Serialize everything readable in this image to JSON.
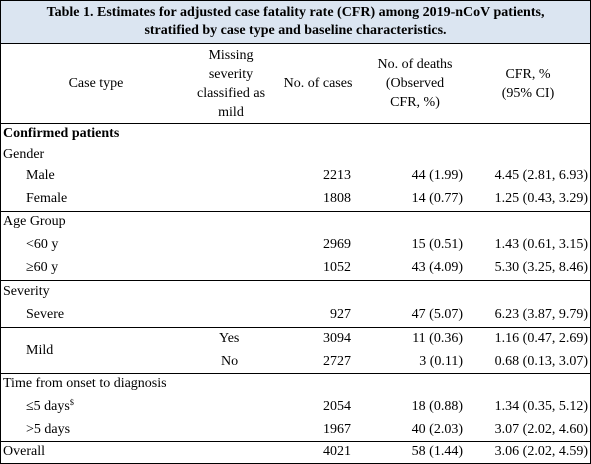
{
  "caption": {
    "line1": "Table 1. Estimates for adjusted case fatality rate (CFR) among 2019-nCoV patients,",
    "line2": "stratified by case type and baseline characteristics."
  },
  "headers": {
    "case_type": "Case type",
    "missing": [
      "Missing",
      "severity",
      "classified as",
      "mild"
    ],
    "cases": "No. of cases",
    "deaths": [
      "No. of deaths",
      "(Observed",
      "CFR, %)"
    ],
    "cfr": [
      "CFR, %",
      "(95% CI)"
    ]
  },
  "rows": [
    {
      "label": "Confirmed patients",
      "kind": "section"
    },
    {
      "label": "Gender",
      "kind": "group"
    },
    {
      "label": "Male",
      "kind": "item",
      "cases": "2213",
      "deaths": "44 (1.99)",
      "cfr": "4.45 (2.81, 6.93)"
    },
    {
      "label": "Female",
      "kind": "item",
      "cases": "1808",
      "deaths": "14 (0.77)",
      "cfr": "1.25 (0.43, 3.29)"
    },
    {
      "label": "Age Group",
      "kind": "group"
    },
    {
      "label": "<60 y",
      "kind": "item",
      "cases": "2969",
      "deaths": "15 (0.51)",
      "cfr": "1.43 (0.61, 3.15)"
    },
    {
      "label": "≥60 y",
      "kind": "item",
      "cases": "1052",
      "deaths": "43 (4.09)",
      "cfr": "5.30 (3.25, 8.46)"
    },
    {
      "label": "Severity",
      "kind": "group"
    },
    {
      "label": "Severe",
      "kind": "item",
      "cases": "927",
      "deaths": "47 (5.07)",
      "cfr": "6.23 (3.87, 9.79)"
    },
    {
      "label": "Mild",
      "kind": "item",
      "missing": "Yes",
      "cases": "3094",
      "deaths": "11 (0.36)",
      "cfr": "1.16 (0.47, 2.69)"
    },
    {
      "label": "",
      "kind": "item",
      "missing": "No",
      "cases": "2727",
      "deaths": "3 (0.11)",
      "cfr": "0.68 (0.13, 3.07)"
    },
    {
      "label": "Time from onset to diagnosis",
      "kind": "group"
    },
    {
      "label": "≤5 days",
      "footnote": "$",
      "kind": "item",
      "cases": "2054",
      "deaths": "18 (0.88)",
      "cfr": "1.34 (0.35, 5.12)"
    },
    {
      "label": ">5 days",
      "kind": "item",
      "cases": "1967",
      "deaths": "40 (2.03)",
      "cfr": "3.07 (2.02, 4.60)"
    },
    {
      "label": "Overall",
      "kind": "group",
      "cases": "4021",
      "deaths": "58 (1.44)",
      "cfr": "3.06 (2.02, 4.59)"
    }
  ]
}
